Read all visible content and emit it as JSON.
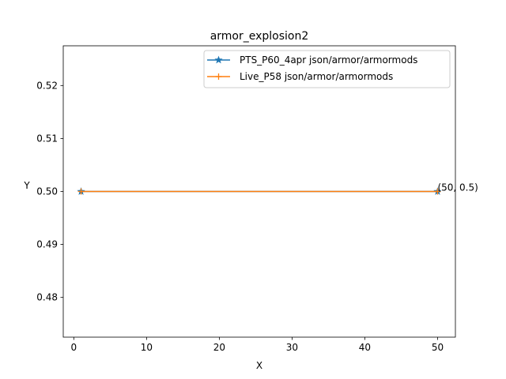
{
  "chart_data": {
    "type": "line",
    "title": "armor_explosion2",
    "xlabel": "X",
    "ylabel": "Y",
    "xlim": [
      -1.45,
      52.45
    ],
    "ylim": [
      0.4725,
      0.5275
    ],
    "xticks": [
      0,
      10,
      20,
      30,
      40,
      50
    ],
    "yticks": [
      0.48,
      0.49,
      0.5,
      0.51,
      0.52
    ],
    "xtick_labels": [
      "0",
      "10",
      "20",
      "30",
      "40",
      "50"
    ],
    "ytick_labels": [
      "0.48",
      "0.49",
      "0.50",
      "0.51",
      "0.52"
    ],
    "grid": false,
    "legend_position": "top-right",
    "series": [
      {
        "name": "PTS_P60_4apr json/armor/armormods",
        "color": "#1f77b4",
        "marker": "star",
        "x": [
          1,
          50
        ],
        "y": [
          0.5,
          0.5
        ]
      },
      {
        "name": "Live_P58 json/armor/armormods",
        "color": "#ff7f0e",
        "marker": "plus",
        "x": [
          1,
          50
        ],
        "y": [
          0.5,
          0.5
        ]
      }
    ],
    "annotations": [
      {
        "text": "(50, 0.5)",
        "x": 50,
        "y": 0.5
      }
    ]
  }
}
